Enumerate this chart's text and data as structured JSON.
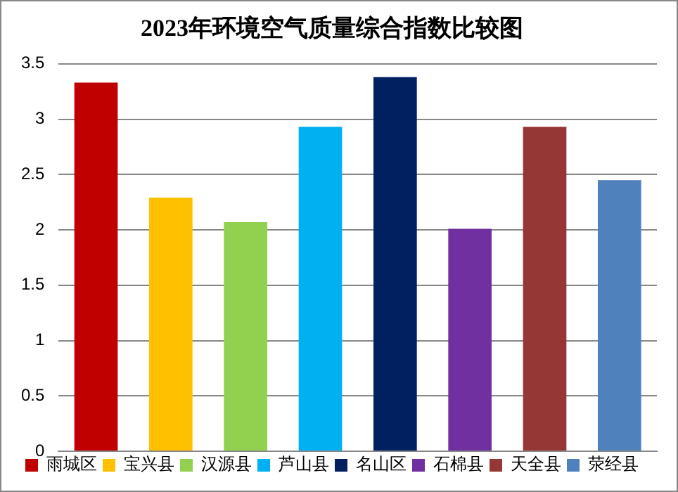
{
  "chart_data": {
    "type": "bar",
    "title": "2023年环境空气质量综合指数比较图",
    "categories": [
      null
    ],
    "series": [
      {
        "name": "雨城区",
        "color": "#c00000",
        "values": [
          3.33
        ]
      },
      {
        "name": "宝兴县",
        "color": "#ffc000",
        "values": [
          2.29
        ]
      },
      {
        "name": "汉源县",
        "color": "#92d050",
        "values": [
          2.07
        ]
      },
      {
        "name": "芦山县",
        "color": "#00b0f0",
        "values": [
          2.93
        ]
      },
      {
        "name": "名山区",
        "color": "#002060",
        "values": [
          3.38
        ]
      },
      {
        "name": "石棉县",
        "color": "#7030a0",
        "values": [
          2.01
        ]
      },
      {
        "name": "天全县",
        "color": "#953735",
        "values": [
          2.93
        ]
      },
      {
        "name": "荥经县",
        "color": "#4f81bd",
        "values": [
          2.45
        ]
      }
    ],
    "ylim": [
      0,
      3.5
    ],
    "yticks": [
      0,
      0.5,
      1,
      1.5,
      2,
      2.5,
      3,
      3.5
    ],
    "grid": "y",
    "legend": "bottom",
    "tick_labels": "y"
  }
}
